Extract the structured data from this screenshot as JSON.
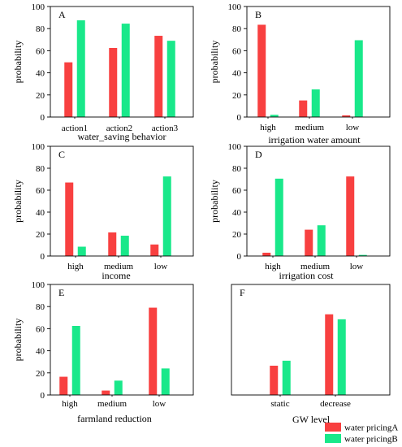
{
  "colors": {
    "series_a": "#f84040",
    "series_b": "#19e88a"
  },
  "legend": {
    "entries": [
      "water pricingA",
      "water pricingB"
    ]
  },
  "chart_data": [
    {
      "type": "bar",
      "panel": "A",
      "xlabel": "water_saving behavior",
      "ylabel": "probability",
      "ylim": [
        0,
        100
      ],
      "yticks": [
        0,
        20,
        40,
        60,
        80,
        100
      ],
      "categories": [
        "action1",
        "action2",
        "action3"
      ],
      "series": [
        {
          "name": "water pricingA",
          "values": [
            49.5,
            62.5,
            73.5
          ]
        },
        {
          "name": "water pricingB",
          "values": [
            87.5,
            84.5,
            69
          ]
        }
      ]
    },
    {
      "type": "bar",
      "panel": "B",
      "xlabel": "irrigation water amount",
      "ylabel": "probability",
      "ylim": [
        0,
        100
      ],
      "yticks": [
        0,
        20,
        40,
        60,
        80,
        100
      ],
      "categories": [
        "high",
        "medium",
        "low"
      ],
      "series": [
        {
          "name": "water pricingA",
          "values": [
            83.5,
            15,
            1.5
          ]
        },
        {
          "name": "water pricingB",
          "values": [
            2,
            25,
            69.5
          ]
        }
      ]
    },
    {
      "type": "bar",
      "panel": "C",
      "xlabel": "income",
      "ylabel": "probability",
      "ylim": [
        0,
        100
      ],
      "yticks": [
        0,
        20,
        40,
        60,
        80,
        100
      ],
      "categories": [
        "high",
        "medium",
        "low"
      ],
      "series": [
        {
          "name": "water pricingA",
          "values": [
            67,
            21.5,
            10.5
          ]
        },
        {
          "name": "water pricingB",
          "values": [
            8.5,
            18.5,
            72.5
          ]
        }
      ]
    },
    {
      "type": "bar",
      "panel": "D",
      "xlabel": "irrigation cost",
      "ylabel": "probability",
      "ylim": [
        0,
        100
      ],
      "yticks": [
        0,
        20,
        40,
        60,
        80,
        100
      ],
      "categories": [
        "high",
        "medium",
        "low"
      ],
      "series": [
        {
          "name": "water pricingA",
          "values": [
            3,
            24,
            72.5
          ]
        },
        {
          "name": "water pricingB",
          "values": [
            70.5,
            28,
            1
          ]
        }
      ]
    },
    {
      "type": "bar",
      "panel": "E",
      "xlabel": "farmland reduction",
      "ylabel": "probability",
      "ylim": [
        0,
        100
      ],
      "yticks": [
        0,
        20,
        40,
        60,
        80,
        100
      ],
      "categories": [
        "high",
        "medium",
        "low"
      ],
      "series": [
        {
          "name": "water pricingA",
          "values": [
            16.5,
            4,
            79
          ]
        },
        {
          "name": "water pricingB",
          "values": [
            62.5,
            13,
            24
          ]
        }
      ]
    },
    {
      "type": "bar",
      "panel": "F",
      "xlabel": "GW level",
      "ylabel": "",
      "ylim": [
        0,
        100
      ],
      "yticks": [],
      "categories": [
        "static",
        "decrease"
      ],
      "series": [
        {
          "name": "water pricingA",
          "values": [
            26.5,
            73
          ]
        },
        {
          "name": "water pricingB",
          "values": [
            31,
            68.5
          ]
        }
      ]
    }
  ]
}
